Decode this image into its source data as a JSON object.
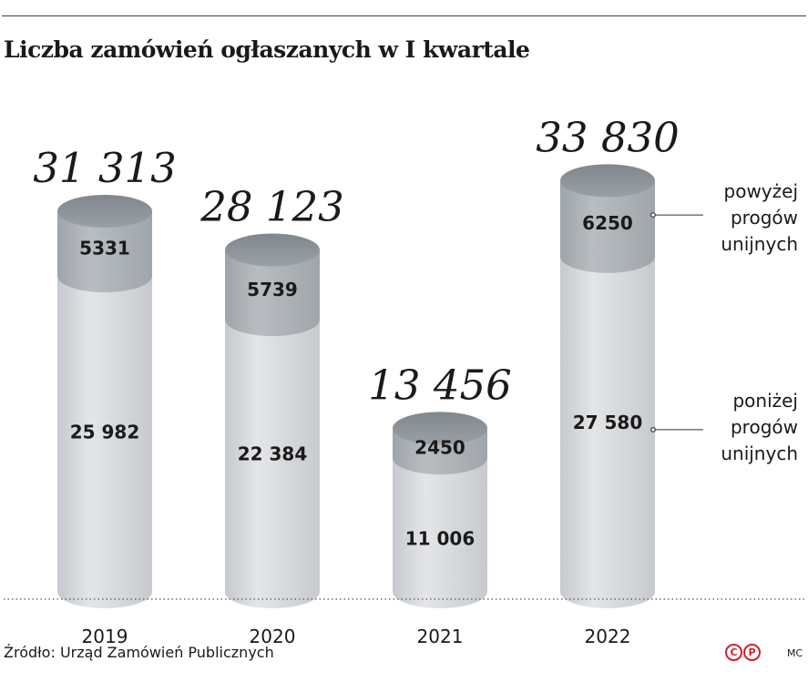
{
  "title": "Liczba zamówień ogłaszanych w I kwartale",
  "source": "Źródło: Urząd Zamówień Publicznych",
  "logo": {
    "left": "C",
    "right": "P"
  },
  "credit": "MC",
  "chart_data": {
    "type": "bar",
    "stacked": true,
    "categories": [
      "2019",
      "2020",
      "2021",
      "2022"
    ],
    "series": [
      {
        "name": "poniżej progów unijnych",
        "values": [
          25982,
          22384,
          11006,
          27580
        ],
        "labels": [
          "25 982",
          "22 384",
          "11 006",
          "27 580"
        ],
        "color": "#d4d7da"
      },
      {
        "name": "powyżej progów unijnych",
        "values": [
          5331,
          5739,
          2450,
          6250
        ],
        "labels": [
          "5331",
          "5739",
          "2450",
          "6250"
        ],
        "color": "#a9afb4"
      }
    ],
    "totals": [
      31313,
      28123,
      13456,
      33830
    ],
    "total_labels": [
      "31 313",
      "28 123",
      "13 456",
      "33 830"
    ],
    "legend": {
      "above": [
        "powyżej",
        "progów",
        "unijnych"
      ],
      "below": [
        "poniżej",
        "progów",
        "unijnych"
      ]
    },
    "colors": {
      "cap": "#8f969c",
      "label": "#1a1a1a",
      "baseline": "#555555"
    },
    "grid": false
  }
}
